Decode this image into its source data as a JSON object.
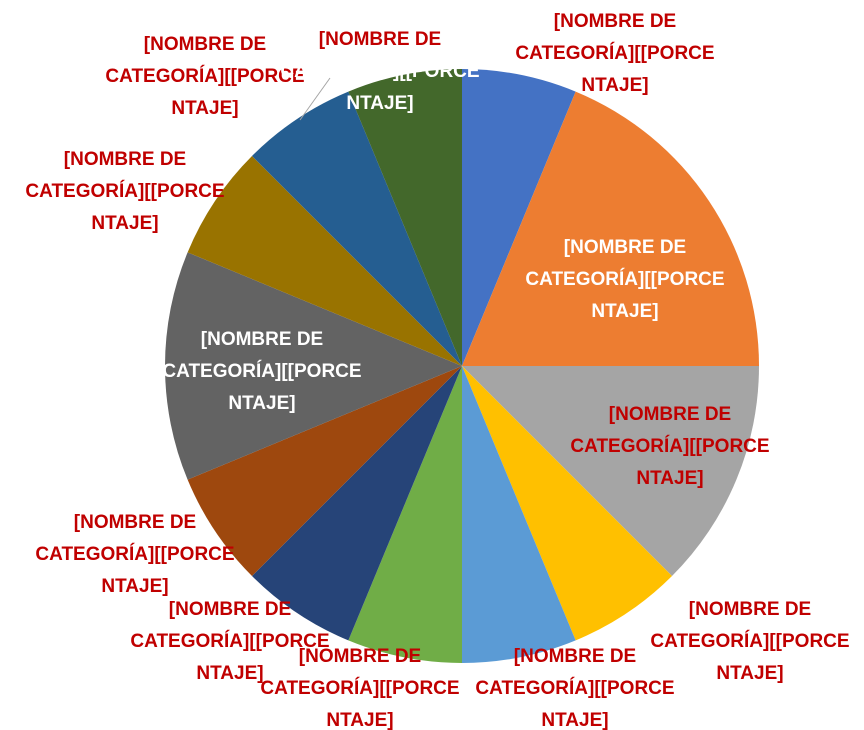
{
  "chart_data": {
    "type": "pie",
    "values": [
      6.25,
      18.75,
      12.5,
      6.25,
      6.25,
      6.25,
      6.25,
      6.25,
      12.5,
      6.25,
      6.25,
      6.25
    ],
    "colors": [
      "#4472c4",
      "#ed7d31",
      "#a5a5a5",
      "#ffc000",
      "#5b9bd5",
      "#70ad47",
      "#264478",
      "#9e480e",
      "#636363",
      "#997300",
      "#255e91",
      "#43682b"
    ],
    "labels": [
      [
        "[NOMBRE DE",
        "CATEGORÍA][[PORCE",
        "NTAJE]"
      ],
      [
        "[NOMBRE DE",
        "CATEGORÍA][[PORCE",
        "NTAJE]"
      ],
      [
        "[NOMBRE DE",
        "CATEGORÍA][[PORCE",
        "NTAJE]"
      ],
      [
        "[NOMBRE DE",
        "CATEGORÍA][[PORCE",
        "NTAJE]"
      ],
      [
        "[NOMBRE DE",
        "CATEGORÍA][[PORCE",
        "NTAJE]"
      ],
      [
        "[NOMBRE DE",
        "CATEGORÍA][[PORCE",
        "NTAJE]"
      ],
      [
        "[NOMBRE DE",
        "CATEGORÍA][[PORCE",
        "NTAJE]"
      ],
      [
        "[NOMBRE DE",
        "CATEGORÍA][[PORCE",
        "NTAJE]"
      ],
      [
        "[NOMBRE DE",
        "CATEGORÍA][[PORCE",
        "NTAJE]"
      ],
      [
        "[NOMBRE DE",
        "CATEGORÍA][[PORCE",
        "NTAJE]"
      ],
      [
        "[NOMBRE DE",
        "CATEGORÍA][[PORCE",
        "NTAJE]"
      ],
      [
        "[NOMBRE DE",
        "CATEGORÍA][[PORCE",
        "NTAJE]"
      ]
    ]
  }
}
